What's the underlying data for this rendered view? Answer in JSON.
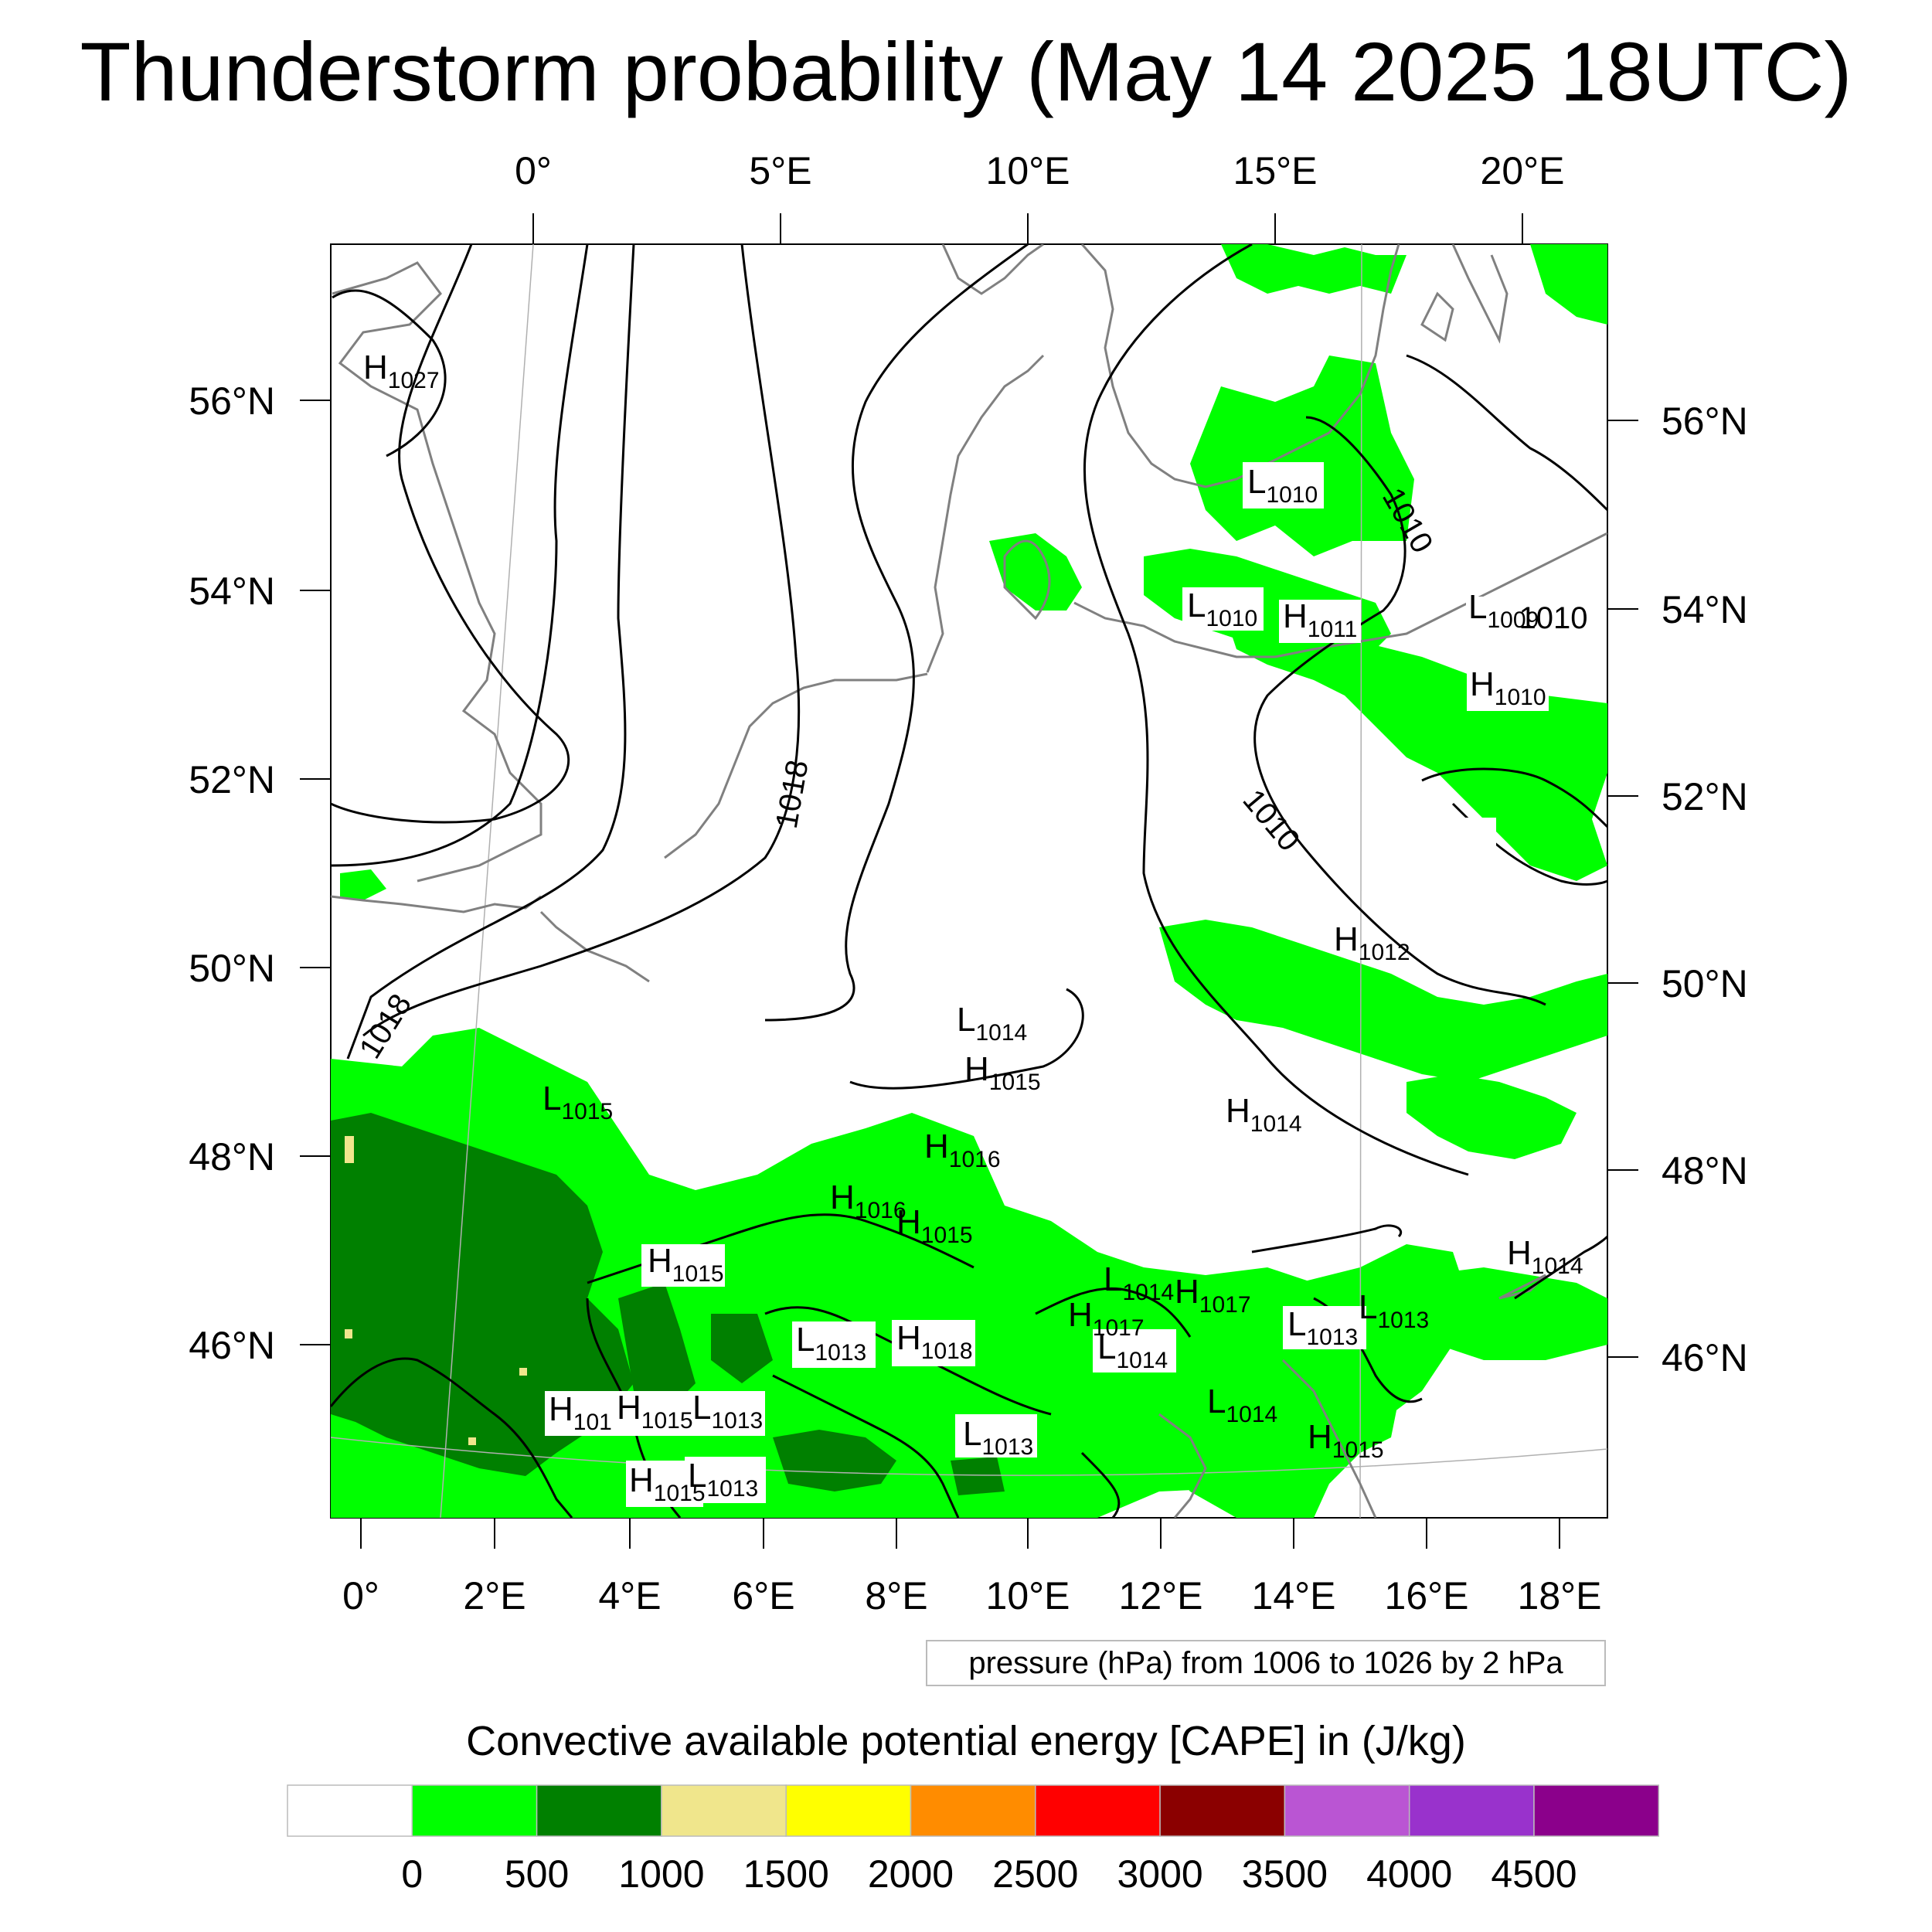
{
  "title": "Thunderstorm probability (May 14 2025 18UTC)",
  "top_lon_labels": [
    "0°",
    "5°E",
    "10°E",
    "15°E",
    "20°E"
  ],
  "bottom_lon_labels": [
    "0°",
    "2°E",
    "4°E",
    "6°E",
    "8°E",
    "10°E",
    "12°E",
    "14°E",
    "16°E",
    "18°E"
  ],
  "left_lat_labels": [
    "56°N",
    "54°N",
    "52°N",
    "50°N",
    "48°N",
    "46°N"
  ],
  "right_lat_labels": [
    "56°N",
    "54°N",
    "52°N",
    "50°N",
    "48°N",
    "46°N"
  ],
  "isobar_labels": [
    "1010",
    "1010",
    "1010",
    "1018",
    "1018"
  ],
  "pressure_centers": [
    {
      "type": "H",
      "value": "1027"
    },
    {
      "type": "L",
      "value": "1010"
    },
    {
      "type": "L",
      "value": "1010"
    },
    {
      "type": "H",
      "value": "1011"
    },
    {
      "type": "L",
      "value": "1009"
    },
    {
      "type": "H",
      "value": "1010"
    },
    {
      "type": "H",
      "value": "1012"
    },
    {
      "type": "L",
      "value": "1014"
    },
    {
      "type": "H",
      "value": "1015"
    },
    {
      "type": "H",
      "value": "1014"
    },
    {
      "type": "L",
      "value": "1015"
    },
    {
      "type": "H",
      "value": "1016"
    },
    {
      "type": "H",
      "value": "1016"
    },
    {
      "type": "H",
      "value": "1015"
    },
    {
      "type": "H",
      "value": "1015"
    },
    {
      "type": "L",
      "value": "1014"
    },
    {
      "type": "H",
      "value": "1017"
    },
    {
      "type": "H",
      "value": "1017"
    },
    {
      "type": "L",
      "value": "1013"
    },
    {
      "type": "L",
      "value": "1013"
    },
    {
      "type": "H",
      "value": "1018"
    },
    {
      "type": "L",
      "value": "1014"
    },
    {
      "type": "L",
      "value": "1013"
    },
    {
      "type": "H",
      "value": "1014"
    },
    {
      "type": "H",
      "value": "101"
    },
    {
      "type": "H",
      "value": "1015"
    },
    {
      "type": "L",
      "value": "1013"
    },
    {
      "type": "L",
      "value": "1014"
    },
    {
      "type": "L",
      "value": "1013"
    },
    {
      "type": "H",
      "value": "1015"
    },
    {
      "type": "H",
      "value": "1015"
    },
    {
      "type": "L",
      "value": "1013"
    }
  ],
  "pressure_note": "pressure (hPa) from 1006 to 1026 by 2 hPa",
  "legend": {
    "title": "Convective available potential energy [CAPE] in (J/kg)",
    "labels": [
      "0",
      "500",
      "1000",
      "1500",
      "2000",
      "2500",
      "3000",
      "3500",
      "4000",
      "4500"
    ],
    "colors": [
      "#ffffff",
      "#00ff00",
      "#008000",
      "#f0e68c",
      "#ffff00",
      "#ff8c00",
      "#ff0000",
      "#8b0000",
      "#ba55d3",
      "#9932cc",
      "#8b008b"
    ]
  },
  "colors": {
    "cape_low": "#00ff00",
    "cape_mid": "#008000",
    "cape_high": "#f0e68c",
    "coastline": "#808080",
    "isobar": "#000000"
  }
}
